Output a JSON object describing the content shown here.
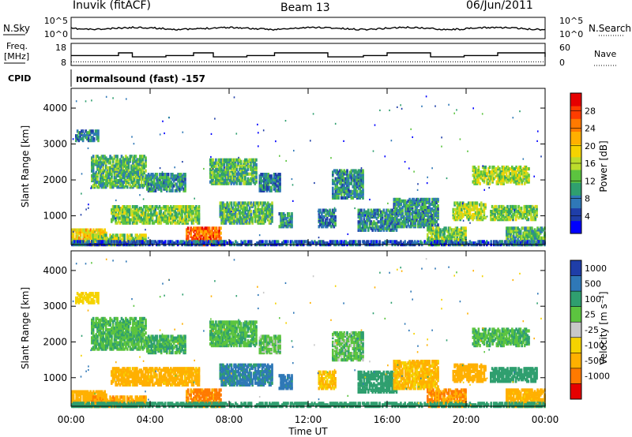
{
  "header": {
    "station": "Inuvik (fitACF)",
    "beam": "Beam 13",
    "date": "06/Jun/2011"
  },
  "side_labels": {
    "nsky": "N.Sky",
    "nsearch": "N.Search",
    "freq_line1": "Freq.",
    "freq_line2": "[MHz]",
    "nave": "Nave",
    "cpid": "CPID"
  },
  "cpid_text": "normalsound (fast) -157",
  "chart_data": [
    {
      "type": "line",
      "name": "noise-panel",
      "y_ticks_left": [
        "10^5",
        "10^0"
      ],
      "y_ticks_right": [
        "10^5",
        "10^0"
      ],
      "series": [
        {
          "name": "N.Sky",
          "style": "solid"
        },
        {
          "name": "N.Search",
          "style": "dotted"
        }
      ]
    },
    {
      "type": "line",
      "name": "freq-nave-panel",
      "y_ticks_left": [
        "18",
        "8"
      ],
      "y_ticks_right": [
        "60",
        "0"
      ],
      "ylim_left": [
        8,
        18
      ],
      "ylim_right": [
        0,
        60
      ],
      "series": [
        {
          "name": "Freq.",
          "style": "solid",
          "level": 12.5
        },
        {
          "name": "Nave",
          "style": "dotted",
          "level": 10
        }
      ]
    },
    {
      "type": "heatmap",
      "name": "power-panel",
      "ylabel": "Slant Range [km]",
      "y_ticks": [
        "1000",
        "2000",
        "3000",
        "4000"
      ],
      "ylim": [
        200,
        4550
      ],
      "colorbar": {
        "label": "Power [dB]",
        "ticks": [
          "4",
          "8",
          "12",
          "16",
          "20",
          "24",
          "28"
        ],
        "colors": [
          "#0000ff",
          "#1f3ea8",
          "#2f78b7",
          "#2f9f6f",
          "#5cc43f",
          "#bcdc2c",
          "#f5d300",
          "#ffb000",
          "#ff7a00",
          "#ff3c00",
          "#e60000"
        ]
      }
    },
    {
      "type": "heatmap",
      "name": "velocity-panel",
      "ylabel": "Slant Range [km]",
      "y_ticks": [
        "1000",
        "2000",
        "3000",
        "4000"
      ],
      "ylim": [
        200,
        4550
      ],
      "colorbar": {
        "label": "Velocity [m s⁻¹]",
        "ticks": [
          "1000",
          "500",
          "100",
          "25",
          "-25",
          "-100",
          "-500",
          "-1000"
        ],
        "colors": [
          "#1f3ea8",
          "#2f78b7",
          "#2f9f6f",
          "#5cc43f",
          "#c8c8c8",
          "#f5d300",
          "#ffb000",
          "#ff7a00",
          "#e60000"
        ]
      }
    }
  ],
  "time_axis": {
    "label": "Time UT",
    "ticks": [
      "00:00",
      "04:00",
      "08:00",
      "12:00",
      "16:00",
      "20:00",
      "00:00"
    ],
    "hours": [
      0,
      4,
      8,
      12,
      16,
      20,
      24
    ]
  },
  "scatter_bands": [
    {
      "t0": 0.0,
      "t1": 1.8,
      "r0": 200,
      "r1": 650,
      "v": 20,
      "vel": -300
    },
    {
      "t0": 0.2,
      "t1": 1.4,
      "r0": 3100,
      "r1": 3400,
      "v": 8,
      "vel": -50
    },
    {
      "t0": 1.0,
      "t1": 3.8,
      "r0": 1800,
      "r1": 2700,
      "v": 12,
      "vel": 20
    },
    {
      "t0": 1.0,
      "t1": 3.8,
      "r0": 200,
      "r1": 500,
      "v": 16,
      "vel": -400
    },
    {
      "t0": 3.8,
      "t1": 5.8,
      "r0": 1700,
      "r1": 2200,
      "v": 10,
      "vel": 25
    },
    {
      "t0": 2.0,
      "t1": 6.5,
      "r0": 800,
      "r1": 1300,
      "v": 14,
      "vel": -150
    },
    {
      "t0": 5.8,
      "t1": 7.6,
      "r0": 200,
      "r1": 700,
      "v": 26,
      "vel": -600
    },
    {
      "t0": 7.0,
      "t1": 9.4,
      "r0": 1900,
      "r1": 2600,
      "v": 12,
      "vel": 20
    },
    {
      "t0": 7.5,
      "t1": 10.2,
      "r0": 800,
      "r1": 1400,
      "v": 12,
      "vel": 120
    },
    {
      "t0": 9.5,
      "t1": 10.6,
      "r0": 1700,
      "r1": 2200,
      "v": 8,
      "vel": 10
    },
    {
      "t0": 10.5,
      "t1": 11.2,
      "r0": 700,
      "r1": 1100,
      "v": 10,
      "vel": 150
    },
    {
      "t0": 12.5,
      "t1": 13.4,
      "r0": 700,
      "r1": 1200,
      "v": 8,
      "vel": -100
    },
    {
      "t0": 13.2,
      "t1": 14.8,
      "r0": 1500,
      "r1": 2300,
      "v": 9,
      "vel": 15
    },
    {
      "t0": 14.5,
      "t1": 16.5,
      "r0": 600,
      "r1": 1200,
      "v": 9,
      "vel": 60
    },
    {
      "t0": 16.3,
      "t1": 18.6,
      "r0": 700,
      "r1": 1500,
      "v": 10,
      "vel": -120
    },
    {
      "t0": 18.0,
      "t1": 20.0,
      "r0": 200,
      "r1": 700,
      "v": 14,
      "vel": -500
    },
    {
      "t0": 19.3,
      "t1": 21.0,
      "r0": 900,
      "r1": 1400,
      "v": 16,
      "vel": -250
    },
    {
      "t0": 20.3,
      "t1": 23.2,
      "r0": 1900,
      "r1": 2400,
      "v": 16,
      "vel": 20
    },
    {
      "t0": 21.2,
      "t1": 23.6,
      "r0": 900,
      "r1": 1300,
      "v": 14,
      "vel": 60
    },
    {
      "t0": 22.0,
      "t1": 24.0,
      "r0": 200,
      "r1": 700,
      "v": 12,
      "vel": -150
    },
    {
      "t0": 0.0,
      "t1": 24.0,
      "r0": 200,
      "r1": 320,
      "v": 6,
      "vel": 50
    }
  ]
}
